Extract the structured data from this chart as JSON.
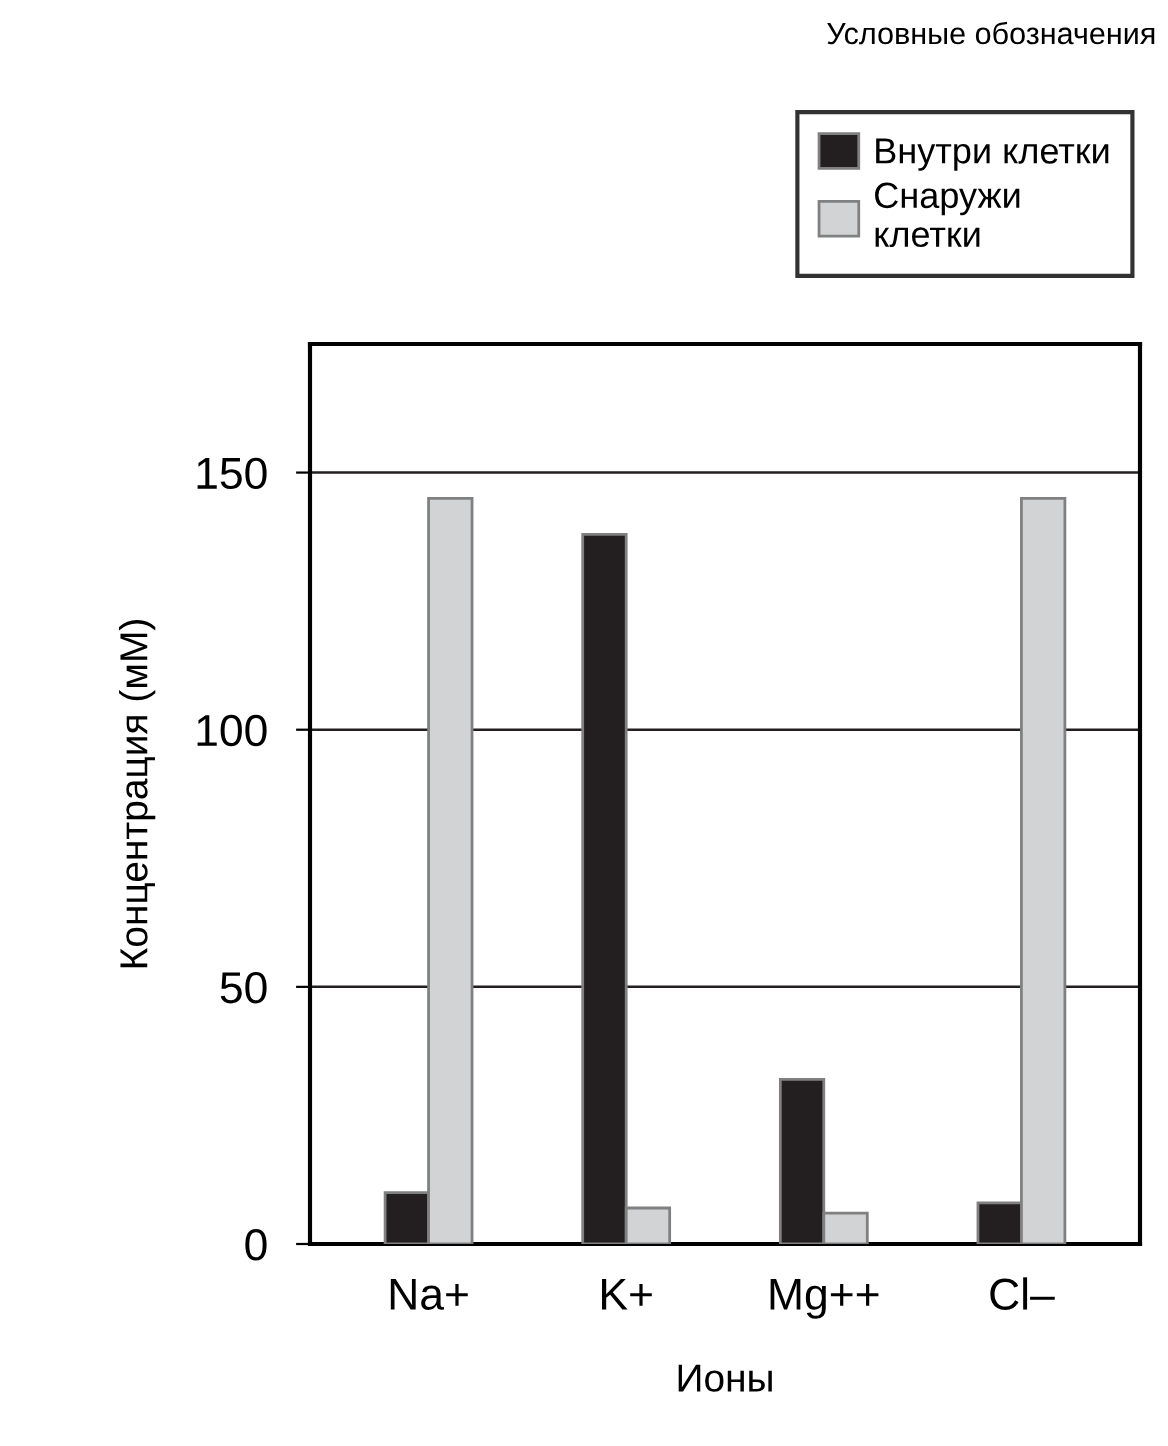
{
  "chart_data": {
    "type": "bar",
    "xlabel": "Ионы",
    "ylabel": "Концентрация (мМ)",
    "legend_title": "Условные обозначения",
    "categories": [
      "Na+",
      "K+",
      "Mg++",
      "Cl–"
    ],
    "series": [
      {
        "name": "Внутри клетки",
        "color": "#231f20",
        "values": [
          10,
          138,
          32,
          8
        ]
      },
      {
        "name": "Снаружи\nклетки",
        "color": "#d1d3d4",
        "values": [
          145,
          7,
          6,
          145
        ]
      }
    ],
    "ylim": [
      0,
      175
    ],
    "yticks": [
      0,
      50,
      100,
      150
    ],
    "grid": "y",
    "legend": "top right"
  }
}
